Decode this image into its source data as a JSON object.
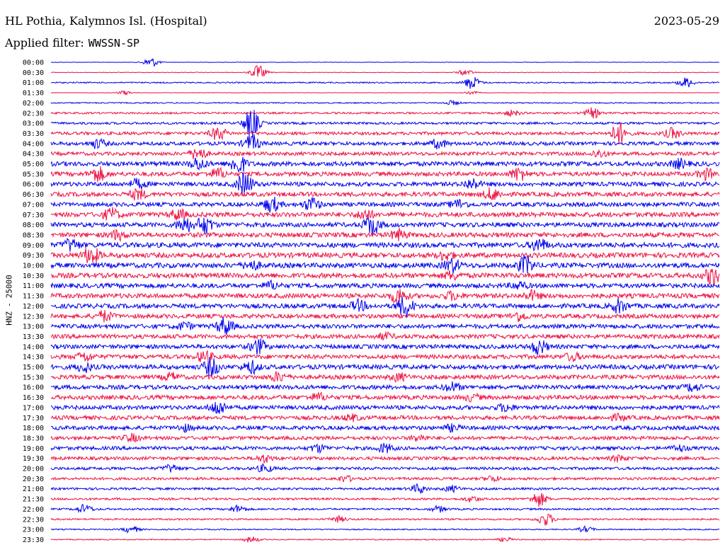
{
  "header": {
    "station": "HL Pothia, Kalymnos Isl. (Hospital)",
    "date": "2023-05-29",
    "filter_label": "Applied filter:",
    "filter_value": "WWSSN-SP"
  },
  "axis": {
    "channel": "HNZ",
    "separator": "-",
    "scale": "25000"
  },
  "colors": {
    "series_a": "#0000ee",
    "series_b": "#ee1144"
  },
  "chart_data": {
    "type": "line",
    "title": "HL Pothia, Kalymnos Isl. (Hospital)",
    "subtitle": "2023-05-29",
    "ylabel": "HNZ - 25000",
    "grid": false,
    "row_color_cycle": [
      "#0000ee",
      "#ee1144"
    ],
    "rows": [
      {
        "label": "00:00",
        "noise": 0.3,
        "events": [
          [
            0.15,
            7
          ]
        ]
      },
      {
        "label": "00:30",
        "noise": 0.4,
        "events": [
          [
            0.31,
            10
          ],
          [
            0.62,
            4
          ]
        ]
      },
      {
        "label": "01:00",
        "noise": 0.9,
        "events": [
          [
            0.63,
            9
          ],
          [
            0.95,
            7
          ]
        ]
      },
      {
        "label": "01:30",
        "noise": 0.3,
        "events": [
          [
            0.11,
            3
          ],
          [
            0.63,
            2
          ]
        ]
      },
      {
        "label": "02:00",
        "noise": 0.8,
        "events": [
          [
            0.6,
            3
          ]
        ]
      },
      {
        "label": "02:30",
        "noise": 1.3,
        "events": [
          [
            0.81,
            7
          ],
          [
            0.69,
            4
          ]
        ]
      },
      {
        "label": "03:00",
        "noise": 1.6,
        "events": [
          [
            0.3,
            20
          ]
        ]
      },
      {
        "label": "03:30",
        "noise": 2.2,
        "events": [
          [
            0.25,
            9
          ],
          [
            0.85,
            15
          ],
          [
            0.93,
            7
          ]
        ]
      },
      {
        "label": "04:00",
        "noise": 2.5,
        "events": [
          [
            0.07,
            6
          ],
          [
            0.3,
            12
          ],
          [
            0.58,
            6
          ]
        ]
      },
      {
        "label": "04:30",
        "noise": 2.5,
        "events": [
          [
            0.22,
            9
          ],
          [
            0.82,
            5
          ]
        ]
      },
      {
        "label": "05:00",
        "noise": 3.2,
        "events": [
          [
            0.22,
            8
          ],
          [
            0.28,
            14
          ],
          [
            0.94,
            6
          ]
        ]
      },
      {
        "label": "05:30",
        "noise": 3.0,
        "events": [
          [
            0.07,
            10
          ],
          [
            0.25,
            7
          ],
          [
            0.7,
            9
          ],
          [
            0.98,
            7
          ]
        ]
      },
      {
        "label": "06:00",
        "noise": 3.0,
        "events": [
          [
            0.29,
            16
          ],
          [
            0.13,
            6
          ],
          [
            0.63,
            7
          ]
        ]
      },
      {
        "label": "06:30",
        "noise": 3.1,
        "events": [
          [
            0.13,
            7
          ],
          [
            0.66,
            8
          ]
        ]
      },
      {
        "label": "07:00",
        "noise": 3.0,
        "events": [
          [
            0.33,
            10
          ],
          [
            0.39,
            9
          ],
          [
            0.61,
            6
          ]
        ]
      },
      {
        "label": "07:30",
        "noise": 3.3,
        "events": [
          [
            0.09,
            8
          ],
          [
            0.19,
            7
          ],
          [
            0.47,
            7
          ]
        ]
      },
      {
        "label": "08:00",
        "noise": 3.2,
        "events": [
          [
            0.2,
            10
          ],
          [
            0.23,
            12
          ],
          [
            0.48,
            14
          ]
        ]
      },
      {
        "label": "08:30",
        "noise": 3.3,
        "events": [
          [
            0.52,
            7
          ],
          [
            0.1,
            6
          ]
        ]
      },
      {
        "label": "09:00",
        "noise": 3.5,
        "events": [
          [
            0.03,
            8
          ],
          [
            0.73,
            9
          ]
        ]
      },
      {
        "label": "09:30",
        "noise": 3.5,
        "events": [
          [
            0.06,
            12
          ],
          [
            0.59,
            6
          ]
        ]
      },
      {
        "label": "10:00",
        "noise": 3.5,
        "events": [
          [
            0.6,
            9
          ],
          [
            0.71,
            12
          ],
          [
            0.3,
            6
          ]
        ]
      },
      {
        "label": "10:30",
        "noise": 3.5,
        "events": [
          [
            0.99,
            12
          ],
          [
            0.6,
            5
          ]
        ]
      },
      {
        "label": "11:00",
        "noise": 3.2,
        "events": [
          [
            0.33,
            5
          ],
          [
            0.7,
            5
          ]
        ]
      },
      {
        "label": "11:30",
        "noise": 3.3,
        "events": [
          [
            0.52,
            10
          ],
          [
            0.72,
            6
          ],
          [
            0.6,
            5
          ]
        ]
      },
      {
        "label": "12:00",
        "noise": 3.2,
        "events": [
          [
            0.53,
            14
          ],
          [
            0.46,
            7
          ],
          [
            0.85,
            9
          ]
        ]
      },
      {
        "label": "12:30",
        "noise": 3.0,
        "events": [
          [
            0.08,
            7
          ],
          [
            0.7,
            6
          ]
        ]
      },
      {
        "label": "13:00",
        "noise": 3.0,
        "events": [
          [
            0.26,
            12
          ],
          [
            0.2,
            5
          ]
        ]
      },
      {
        "label": "13:30",
        "noise": 3.0,
        "events": [
          [
            0.5,
            4
          ]
        ]
      },
      {
        "label": "14:00",
        "noise": 3.0,
        "events": [
          [
            0.31,
            10
          ],
          [
            0.73,
            10
          ]
        ]
      },
      {
        "label": "14:30",
        "noise": 3.0,
        "events": [
          [
            0.05,
            6
          ],
          [
            0.23,
            8
          ],
          [
            0.78,
            5
          ]
        ]
      },
      {
        "label": "15:00",
        "noise": 3.2,
        "events": [
          [
            0.24,
            12
          ],
          [
            0.3,
            8
          ],
          [
            0.05,
            6
          ]
        ]
      },
      {
        "label": "15:30",
        "noise": 3.0,
        "events": [
          [
            0.18,
            5
          ],
          [
            0.34,
            6
          ],
          [
            0.52,
            5
          ]
        ]
      },
      {
        "label": "16:00",
        "noise": 3.0,
        "events": [
          [
            0.6,
            6
          ],
          [
            0.96,
            5
          ]
        ]
      },
      {
        "label": "16:30",
        "noise": 3.0,
        "events": [
          [
            0.4,
            5
          ],
          [
            0.63,
            4
          ]
        ]
      },
      {
        "label": "17:00",
        "noise": 2.9,
        "events": [
          [
            0.25,
            10
          ],
          [
            0.68,
            5
          ]
        ]
      },
      {
        "label": "17:30",
        "noise": 2.8,
        "events": [
          [
            0.45,
            4
          ],
          [
            0.85,
            4
          ]
        ]
      },
      {
        "label": "18:00",
        "noise": 2.8,
        "events": [
          [
            0.6,
            4
          ],
          [
            0.2,
            4
          ]
        ]
      },
      {
        "label": "18:30",
        "noise": 2.5,
        "events": [
          [
            0.12,
            5
          ],
          [
            0.55,
            4
          ]
        ]
      },
      {
        "label": "19:00",
        "noise": 2.5,
        "events": [
          [
            0.4,
            5
          ],
          [
            0.5,
            6
          ],
          [
            0.94,
            4
          ]
        ]
      },
      {
        "label": "19:30",
        "noise": 2.3,
        "events": [
          [
            0.32,
            5
          ],
          [
            0.85,
            4
          ]
        ]
      },
      {
        "label": "20:00",
        "noise": 2.0,
        "events": [
          [
            0.18,
            5
          ],
          [
            0.32,
            5
          ]
        ]
      },
      {
        "label": "20:30",
        "noise": 1.8,
        "events": [
          [
            0.44,
            4
          ],
          [
            0.66,
            4
          ]
        ]
      },
      {
        "label": "21:00",
        "noise": 1.6,
        "events": [
          [
            0.55,
            6
          ],
          [
            0.6,
            4
          ]
        ]
      },
      {
        "label": "21:30",
        "noise": 1.5,
        "events": [
          [
            0.73,
            10
          ],
          [
            0.63,
            4
          ]
        ]
      },
      {
        "label": "22:00",
        "noise": 1.3,
        "events": [
          [
            0.05,
            6
          ],
          [
            0.28,
            5
          ],
          [
            0.58,
            4
          ]
        ]
      },
      {
        "label": "22:30",
        "noise": 1.2,
        "events": [
          [
            0.74,
            9
          ],
          [
            0.43,
            4
          ]
        ]
      },
      {
        "label": "23:00",
        "noise": 0.8,
        "events": [
          [
            0.12,
            5
          ],
          [
            0.8,
            4
          ]
        ]
      },
      {
        "label": "23:30",
        "noise": 0.7,
        "events": [
          [
            0.3,
            4
          ],
          [
            0.68,
            3
          ]
        ]
      }
    ]
  }
}
